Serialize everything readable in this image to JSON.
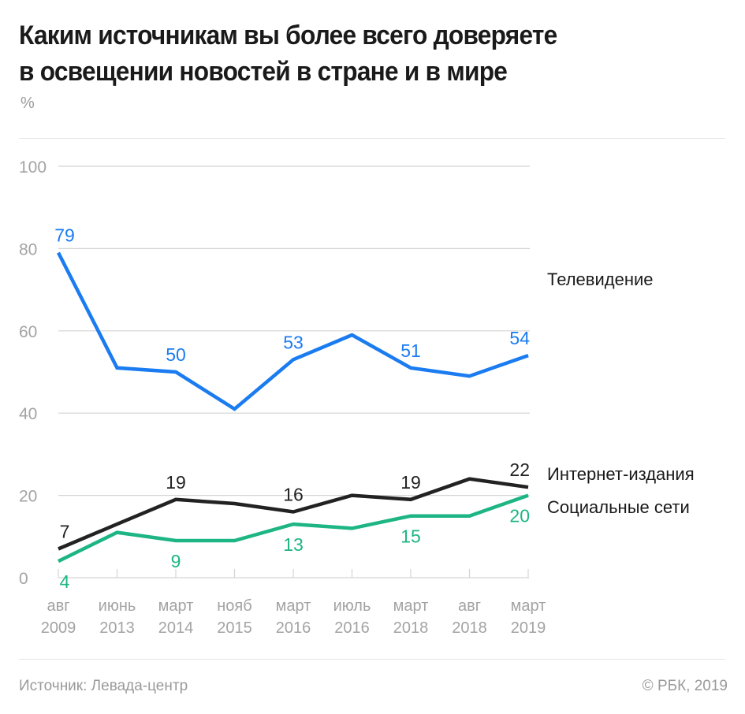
{
  "header": {
    "title_line1": "Каким источникам вы более всего доверяете",
    "title_line2": "в освещении новостей в стране и в мире",
    "unit": "%"
  },
  "footer": {
    "source": "Источник: Левада-центр",
    "copyright": "© РБК, 2019"
  },
  "chart_data": {
    "type": "line",
    "title": "Каким источникам вы более всего доверяете в освещении новостей в стране и в мире",
    "ylabel": "%",
    "xlabel": "",
    "ylim": [
      0,
      100
    ],
    "yticks": [
      0,
      20,
      40,
      60,
      80,
      100
    ],
    "grid": true,
    "legend_placement": "right (inline at line ends)",
    "categories": [
      {
        "month": "авг",
        "year": "2009"
      },
      {
        "month": "июнь",
        "year": "2013"
      },
      {
        "month": "март",
        "year": "2014"
      },
      {
        "month": "нояб",
        "year": "2015"
      },
      {
        "month": "март",
        "year": "2016"
      },
      {
        "month": "июль",
        "year": "2016"
      },
      {
        "month": "март",
        "year": "2018"
      },
      {
        "month": "авг",
        "year": "2018"
      },
      {
        "month": "март",
        "year": "2019"
      }
    ],
    "series": [
      {
        "name": "Телевидение",
        "color": "#1a7cf0",
        "values": [
          79,
          51,
          50,
          41,
          53,
          59,
          51,
          49,
          54
        ],
        "labeled_indices": [
          0,
          2,
          4,
          6,
          8
        ],
        "label_position": "above"
      },
      {
        "name": "Интернет-издания",
        "color": "#222222",
        "values": [
          7,
          13,
          19,
          18,
          16,
          20,
          19,
          24,
          22
        ],
        "labeled_indices": [
          0,
          2,
          4,
          6,
          8
        ],
        "label_position": "above"
      },
      {
        "name": "Социальные сети",
        "color": "#1db584",
        "values": [
          4,
          11,
          9,
          9,
          13,
          12,
          15,
          15,
          20
        ],
        "labeled_indices": [
          0,
          2,
          4,
          6,
          8
        ],
        "label_position": "below"
      }
    ]
  }
}
